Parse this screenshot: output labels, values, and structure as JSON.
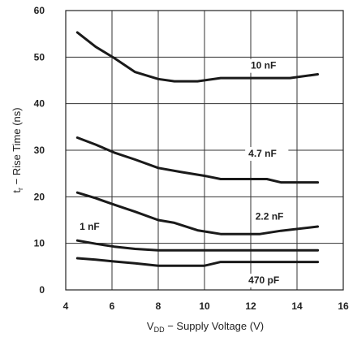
{
  "chart_data": {
    "type": "line",
    "xlabel": "V",
    "xlabel_sub": "DD",
    "xlabel_rest": " − Supply Voltage (V)",
    "ylabel": "t",
    "ylabel_sub": "r",
    "ylabel_rest": " − Rise Time (ns)",
    "xlim": [
      4,
      16
    ],
    "ylim": [
      0,
      60
    ],
    "x_ticks": [
      "4",
      "6",
      "8",
      "10",
      "12",
      "14",
      "16"
    ],
    "y_ticks": [
      "0",
      "10",
      "20",
      "30",
      "40",
      "50",
      "60"
    ],
    "grid": true,
    "series": [
      {
        "name": "10 nF",
        "x": [
          4.5,
          5.3,
          6.1,
          7.0,
          8.0,
          8.7,
          9.7,
          10.7,
          11.7,
          12.7,
          13.7,
          14.9
        ],
        "y": [
          55.3,
          52.2,
          49.8,
          46.8,
          45.3,
          44.8,
          44.8,
          45.5,
          45.5,
          45.5,
          45.5,
          46.3
        ]
      },
      {
        "name": "4.7 nF",
        "x": [
          4.5,
          5.3,
          6.1,
          7.0,
          8.0,
          9.0,
          10.0,
          10.7,
          11.7,
          12.7,
          13.3,
          14.9
        ],
        "y": [
          32.7,
          31.2,
          29.5,
          28.0,
          26.2,
          25.3,
          24.5,
          23.8,
          23.8,
          23.8,
          23.1,
          23.1
        ]
      },
      {
        "name": "2.2 nF",
        "x": [
          4.5,
          5.3,
          6.1,
          7.0,
          8.0,
          8.7,
          9.7,
          10.7,
          11.7,
          12.4,
          13.3,
          14.9
        ],
        "y": [
          20.9,
          19.7,
          18.3,
          16.8,
          15.0,
          14.4,
          12.8,
          12.0,
          12.0,
          12.0,
          12.7,
          13.6
        ]
      },
      {
        "name": "1 nF",
        "x": [
          4.5,
          5.3,
          6.1,
          7.0,
          8.0,
          9.0,
          10.0,
          11.0,
          12.0,
          13.0,
          14.0,
          14.9
        ],
        "y": [
          10.6,
          9.9,
          9.3,
          8.8,
          8.5,
          8.5,
          8.5,
          8.5,
          8.5,
          8.5,
          8.5,
          8.5
        ]
      },
      {
        "name": "470 pF",
        "x": [
          4.5,
          5.3,
          6.1,
          7.0,
          8.0,
          9.0,
          10.0,
          10.7,
          11.7,
          12.7,
          13.7,
          14.9
        ],
        "y": [
          6.8,
          6.5,
          6.1,
          5.7,
          5.2,
          5.2,
          5.2,
          6.0,
          6.0,
          6.0,
          6.0,
          6.0
        ]
      }
    ]
  }
}
